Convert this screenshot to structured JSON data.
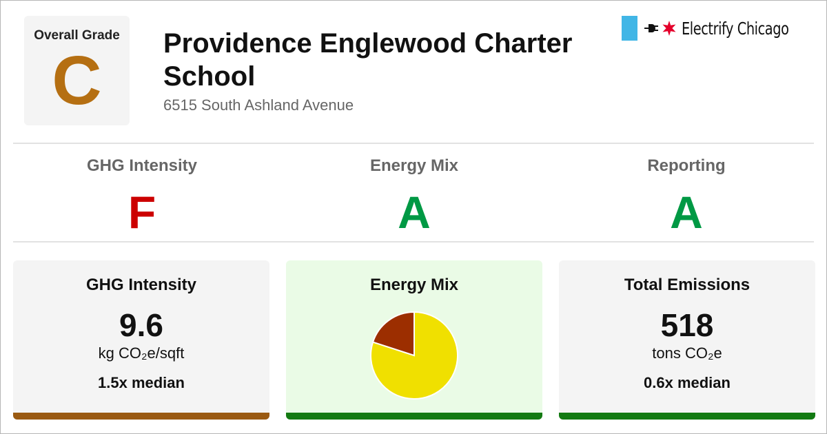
{
  "overall": {
    "label": "Overall Grade",
    "grade": "C",
    "grade_color": "#b56f12"
  },
  "school": {
    "name": "Providence Englewood Charter School",
    "address": "6515 South Ashland Avenue"
  },
  "brand": {
    "name": "Electrify Chicago",
    "flag_color": "#41b6e6",
    "star_color": "#e4002b"
  },
  "subgrades": [
    {
      "label": "GHG Intensity",
      "grade": "F",
      "color": "#cc0000"
    },
    {
      "label": "Energy Mix",
      "grade": "A",
      "color": "#009944"
    },
    {
      "label": "Reporting",
      "grade": "A",
      "color": "#009944"
    }
  ],
  "cards": {
    "ghg": {
      "title": "GHG Intensity",
      "value": "9.6",
      "unit": "kg CO₂e/sqft",
      "median": "1.5x median",
      "bar_color": "#9a5a12"
    },
    "energy": {
      "title": "Energy Mix",
      "bar_color": "#137a12",
      "background": "#eafbe6"
    },
    "emissions": {
      "title": "Total Emissions",
      "value": "518",
      "unit": "tons CO₂e",
      "median": "0.6x median",
      "bar_color": "#137a12"
    }
  },
  "chart_data": {
    "type": "pie",
    "title": "Energy Mix",
    "slices": [
      {
        "value": 80,
        "color": "#f0e000"
      },
      {
        "value": 20,
        "color": "#9c2e00"
      }
    ]
  }
}
